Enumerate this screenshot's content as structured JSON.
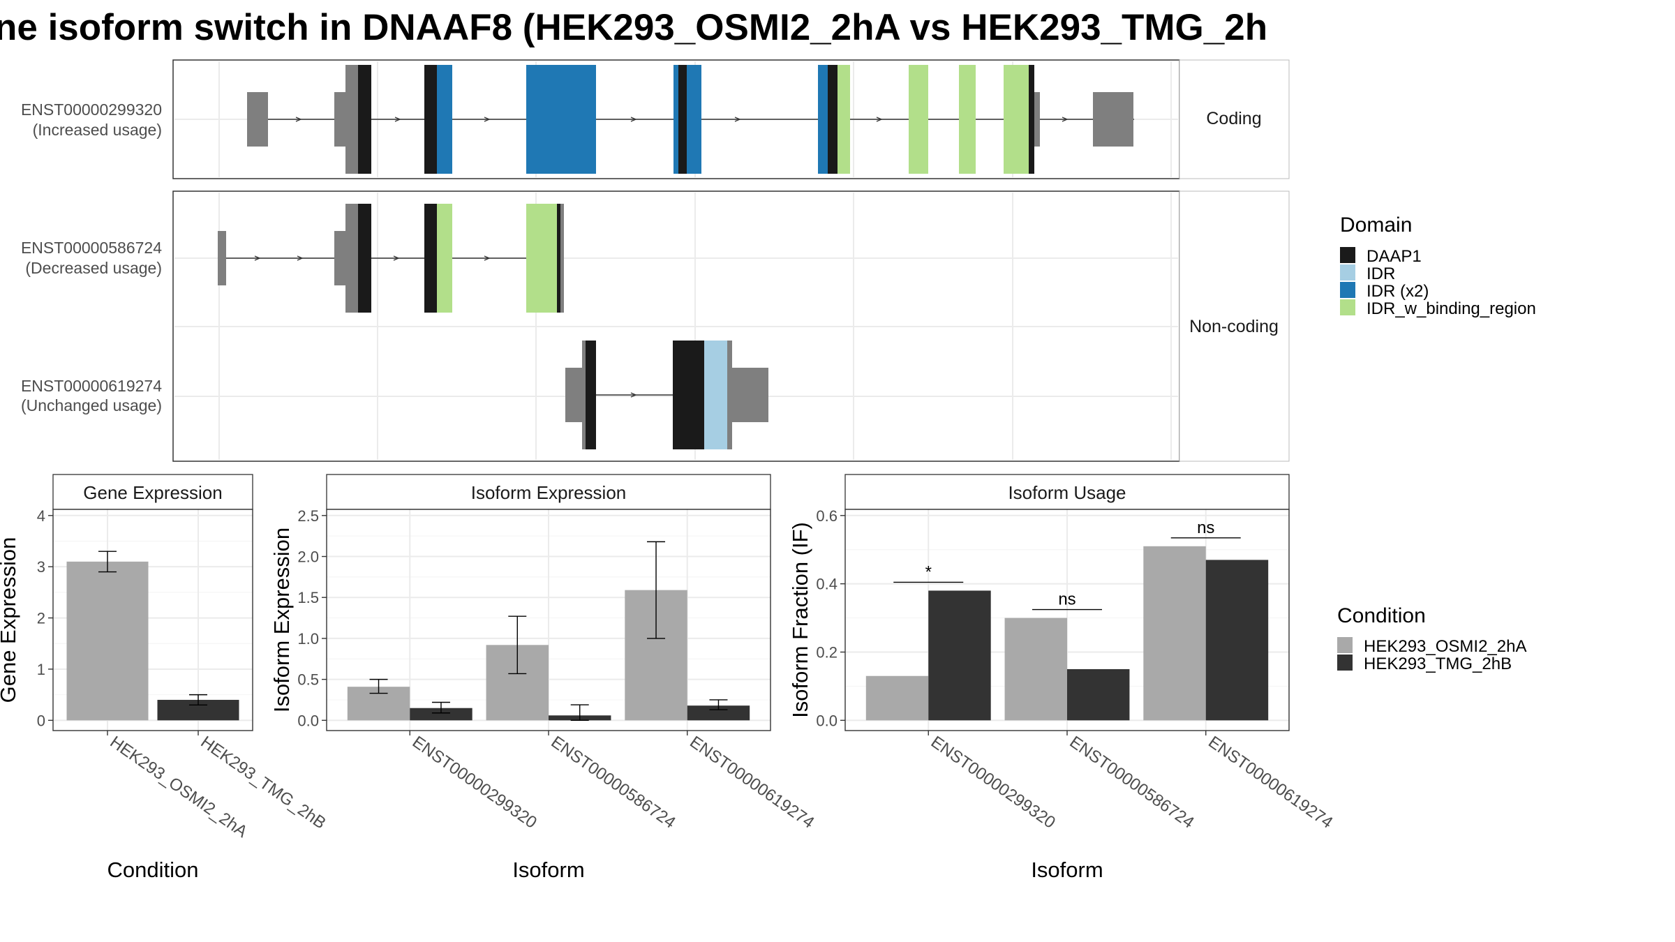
{
  "title": "ne isoform switch in DNAAF8 (HEK293_OSMI2_2hA vs HEK293_TMG_2h",
  "colors": {
    "DAAP1": "#1a1a1a",
    "IDR": "#a6cee3",
    "IDR (x2)": "#1f78b4",
    "IDR_w_binding_region": "#b2df8a",
    "utr": "#7f7f7f",
    "cond_a": "#a9a9a9",
    "cond_b": "#333333"
  },
  "structure": {
    "facets": [
      "Coding",
      "Non-coding"
    ],
    "transcripts": [
      {
        "id": "ENST00000299320",
        "usage": "(Increased usage)",
        "facet": "Coding"
      },
      {
        "id": "ENST00000586724",
        "usage": "(Decreased usage)",
        "facet": "Non-coding"
      },
      {
        "id": "ENST00000619274",
        "usage": "(Unchanged usage)",
        "facet": "Non-coding"
      }
    ],
    "domain_legend": {
      "title": "Domain",
      "items": [
        "DAAP1",
        "IDR",
        "IDR (x2)",
        "IDR_w_binding_region"
      ]
    }
  },
  "chart_data": [
    {
      "type": "bar",
      "title": "Gene Expression",
      "xlabel": "Condition",
      "ylabel": "Gene Expression",
      "ylim": [
        0,
        4
      ],
      "yticks": [
        0,
        1,
        2,
        3,
        4
      ],
      "categories": [
        "HEK293_OSMI2_2hA",
        "HEK293_TMG_2hB"
      ],
      "values": [
        3.1,
        0.4
      ],
      "error_low": [
        2.9,
        0.3
      ],
      "error_high": [
        3.3,
        0.5
      ]
    },
    {
      "type": "bar",
      "title": "Isoform Expression",
      "xlabel": "Isoform",
      "ylabel": "Isoform Expression",
      "ylim": [
        0,
        2.5
      ],
      "yticks": [
        0.0,
        0.5,
        1.0,
        1.5,
        2.0,
        2.5
      ],
      "categories": [
        "ENST00000299320",
        "ENST00000586724",
        "ENST00000619274"
      ],
      "series": [
        {
          "name": "HEK293_OSMI2_2hA",
          "values": [
            0.41,
            0.92,
            1.59
          ],
          "error_low": [
            0.33,
            0.57,
            1.0
          ],
          "error_high": [
            0.5,
            1.27,
            2.18
          ]
        },
        {
          "name": "HEK293_TMG_2hB",
          "values": [
            0.15,
            0.06,
            0.18
          ],
          "error_low": [
            0.09,
            0.0,
            0.13
          ],
          "error_high": [
            0.22,
            0.19,
            0.25
          ]
        }
      ]
    },
    {
      "type": "bar",
      "title": "Isoform Usage",
      "xlabel": "Isoform",
      "ylabel": "Isoform Fraction (IF)",
      "ylim": [
        0,
        0.6
      ],
      "yticks": [
        0.0,
        0.2,
        0.4,
        0.6
      ],
      "categories": [
        "ENST00000299320",
        "ENST00000586724",
        "ENST00000619274"
      ],
      "series": [
        {
          "name": "HEK293_OSMI2_2hA",
          "values": [
            0.13,
            0.3,
            0.51
          ]
        },
        {
          "name": "HEK293_TMG_2hB",
          "values": [
            0.38,
            0.15,
            0.47
          ]
        }
      ],
      "significance": [
        "*",
        "ns",
        "ns"
      ]
    }
  ],
  "condition_legend": {
    "title": "Condition",
    "items": [
      "HEK293_OSMI2_2hA",
      "HEK293_TMG_2hB"
    ]
  }
}
